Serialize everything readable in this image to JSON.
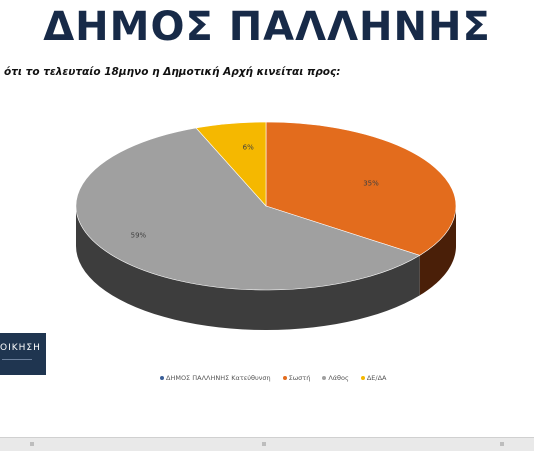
{
  "slide": {
    "title": "ΔΗΜΟΣ ΠΑΛΛΗΝΗΣ",
    "question": "ότι το τελευταίο 18μηνο η Δημοτική Αρχή κινείται προς:",
    "logo_text": "ΟΙΚΗΣΗ"
  },
  "chart_data": {
    "type": "pie",
    "title": "",
    "categories": [
      "ΔΗΜΟΣ ΠΑΛΛΗΝΗΣ Κατεύθυνση",
      "Σωστή",
      "Λάθος",
      "ΔΕ/ΔΑ"
    ],
    "series": [
      {
        "name": "ΔΗΜΟΣ ΠΑΛΛΗΝΗΣ Κατεύθυνση",
        "values": [
          0,
          35,
          59,
          6
        ]
      }
    ],
    "data_labels": [
      "",
      "35%",
      "59%",
      "6%"
    ],
    "colors": [
      "#3b5f98",
      "#e36c1d",
      "#a0a0a0",
      "#f5b800"
    ],
    "side_colors": [
      "#2a4470",
      "#4a1f08",
      "#3d3d3d",
      "#a07500"
    ],
    "legend_position": "bottom",
    "style": "3d"
  }
}
